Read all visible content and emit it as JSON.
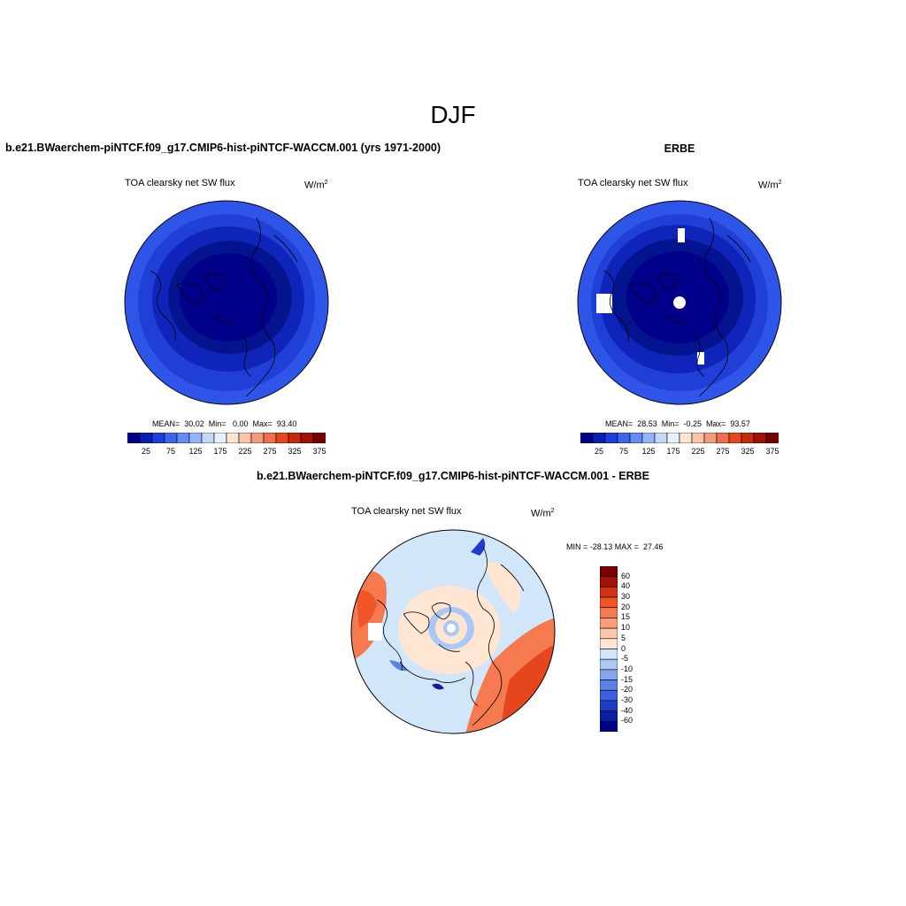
{
  "page_title": "DJF",
  "panels": {
    "model": {
      "title": "b.e21.BWaerchem-piNTCF.f09_g17.CMIP6-hist-piNTCF-WACCM.001 (yrs 1971-2000)",
      "variable": "TOA clearsky net SW flux",
      "units": "W/m",
      "units_exp": "2",
      "stats": "MEAN=  30.02  Min=   0.00  Max=  93.40"
    },
    "obs": {
      "title": "ERBE",
      "variable": "TOA clearsky net SW flux",
      "units": "W/m",
      "units_exp": "2",
      "stats": "MEAN=  28.53  Min=  -0.25  Max=  93.57"
    },
    "diff": {
      "title": "b.e21.BWaerchem-piNTCF.f09_g17.CMIP6-hist-piNTCF-WACCM.001 - ERBE",
      "variable": "TOA clearsky net SW flux",
      "units": "W/m",
      "units_exp": "2",
      "stats": "MIN = -28.13 MAX =  27.46"
    }
  },
  "colorbars": {
    "abs_labels": [
      "25",
      "75",
      "125",
      "175",
      "225",
      "275",
      "325",
      "375"
    ],
    "abs_colors": [
      "#00008b",
      "#0a1eb4",
      "#1e3cdc",
      "#3c64f0",
      "#648cf5",
      "#96b4fa",
      "#c3d7fa",
      "#e6f0ff",
      "#ffe6d2",
      "#fac3aa",
      "#f59b7d",
      "#f06e4b",
      "#e6461e",
      "#c8280a",
      "#a01405",
      "#780000"
    ],
    "diff_labels": [
      "60",
      "40",
      "30",
      "20",
      "15",
      "10",
      "5",
      "0",
      "-5",
      "-10",
      "-15",
      "-20",
      "-30",
      "-40",
      "-60"
    ],
    "diff_colors": [
      "#780000",
      "#a01405",
      "#d23214",
      "#f05528",
      "#f57a50",
      "#f9a07a",
      "#fcc6a8",
      "#ffe6d2",
      "#d2e6fa",
      "#aac8f5",
      "#82a5f0",
      "#5a82e6",
      "#3c5fdc",
      "#1e3cc8",
      "#0a1ea0",
      "#00008b"
    ]
  }
}
